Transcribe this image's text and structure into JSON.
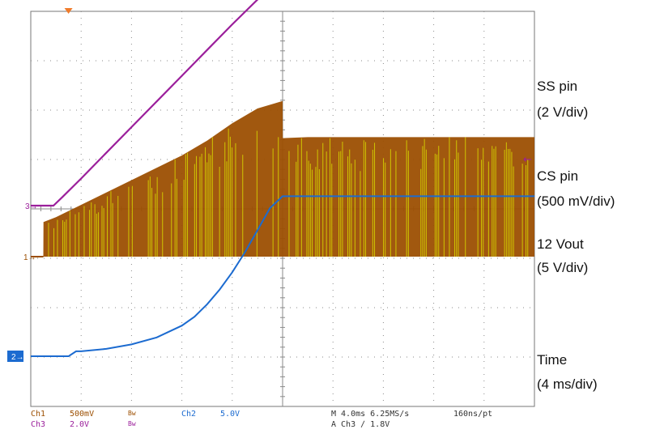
{
  "chart_data": {
    "type": "line",
    "title": "",
    "xlabel": "",
    "ylabel": "",
    "grid": true,
    "x_unit": "ms",
    "xlim": [
      0,
      40
    ],
    "divisions": {
      "x": 10,
      "y": 8
    },
    "series": [
      {
        "channel": "3",
        "color": "#9b1f9b",
        "x": [
          0,
          1.8,
          2.5,
          4,
          6,
          8,
          10,
          12,
          14,
          16,
          18,
          20,
          22,
          23,
          24,
          25,
          26,
          28,
          30,
          32,
          34,
          36,
          38,
          40
        ],
        "y": [
          3.25,
          3.25,
          3.42,
          3.8,
          4.32,
          4.84,
          5.36,
          5.88,
          6.4,
          6.92,
          7.42,
          7.8,
          8.08,
          8.18,
          8.25,
          8.3,
          8.33,
          8.36,
          8.37,
          8.37,
          8.38,
          8.38,
          8.38,
          8.38
        ]
      },
      {
        "channel": "1",
        "color": "#9c4f02",
        "x": [
          0,
          1.0,
          1.01,
          2.0,
          4,
          6,
          8,
          10,
          12,
          14,
          16,
          18,
          20,
          20.01,
          22,
          24,
          26,
          28,
          30,
          32,
          34,
          36,
          38,
          40
        ],
        "y": [
          2.5,
          2.5,
          3.2,
          3.3,
          3.55,
          3.8,
          4.05,
          4.3,
          4.55,
          4.85,
          5.2,
          5.5,
          5.65,
          4.9,
          4.92,
          4.92,
          4.92,
          4.92,
          4.92,
          4.92,
          4.92,
          4.92,
          4.92,
          4.92
        ]
      },
      {
        "channel": "2",
        "color": "#1c6bd0",
        "x": [
          0,
          3,
          3.6,
          4.0,
          6,
          8,
          10,
          12,
          13,
          14,
          15,
          16,
          17,
          18,
          19,
          20,
          22,
          24,
          26,
          28,
          30,
          32,
          34,
          36,
          38,
          40
        ],
        "y": [
          0.0,
          0.0,
          0.1,
          0.1,
          0.15,
          0.24,
          0.38,
          0.62,
          0.8,
          1.05,
          1.35,
          1.7,
          2.1,
          2.55,
          3.0,
          3.24,
          3.24,
          3.24,
          3.24,
          3.24,
          3.24,
          3.24,
          3.24,
          3.24,
          3.24,
          3.24
        ]
      }
    ],
    "markers": {
      "ch3": "3",
      "ch1": "1",
      "ch2": "2",
      "trigger_arrow": "←"
    },
    "annotations": [
      {
        "line1": "SS pin",
        "line2": "(2 V/div)"
      },
      {
        "line1": "CS pin",
        "line2": "(500 mV/div)"
      },
      {
        "line1": "12 Vout",
        "line2": "(5 V/div)"
      },
      {
        "line1": "Time",
        "line2": "(4 ms/div)"
      }
    ],
    "readout": {
      "row1": {
        "ch1": "Ch1",
        "ch1_scale": "500mV",
        "bw1": "Bw",
        "ch2": "Ch2",
        "ch2_scale": "5.0V",
        "timebase": "M 4.0ms 6.25MS/s",
        "resolution": "160ns/pt"
      },
      "row2": {
        "ch3": "Ch3",
        "ch3_scale": "2.0V",
        "bw3": "Bw",
        "trigger": "A  Ch3  ∕  1.8V"
      }
    },
    "colors": {
      "ch1": "#9c4f02",
      "ch1_hf": "#d8d800",
      "ch2": "#1c6bd0",
      "ch3": "#9b1f9b",
      "trigger": "#f07b2a",
      "grid": "#8a8a8a",
      "frame": "#777777"
    }
  }
}
